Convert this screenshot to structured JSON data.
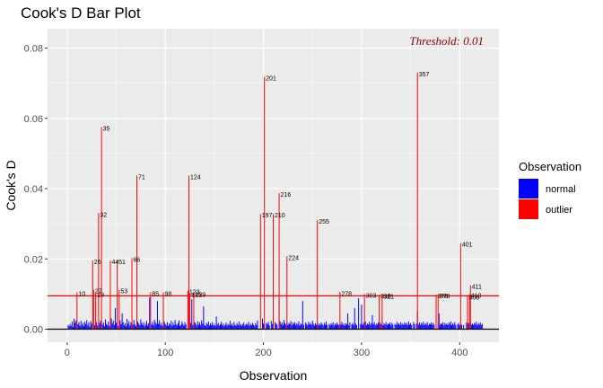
{
  "chart_data": {
    "type": "bar",
    "title": "Cook's D Bar Plot",
    "xlabel": "Observation",
    "ylabel": "Cook's D",
    "xlim": [
      -20,
      440
    ],
    "ylim": [
      -0.0037,
      0.0855
    ],
    "x_ticks": [
      0,
      100,
      200,
      300,
      400
    ],
    "y_ticks": [
      0.0,
      0.02,
      0.04,
      0.06,
      0.08
    ],
    "y_tick_labels": [
      "0.00",
      "0.02",
      "0.04",
      "0.06",
      "0.08"
    ],
    "grid": true,
    "threshold": 0.0095,
    "threshold_label": "Threshold: 0.01",
    "legend": {
      "title": "Observation",
      "position": "right",
      "items": [
        {
          "name": "normal",
          "color": "#0000ff"
        },
        {
          "name": "outlier",
          "color": "#ff0000"
        }
      ]
    },
    "colors": {
      "normal": "#0000ff",
      "outlier": "#ff0000",
      "threshold": "#ff0000",
      "panel": "#ebebeb",
      "grid": "#ffffff"
    },
    "outliers": [
      {
        "x": 10,
        "y": 0.0105
      },
      {
        "x": 26,
        "y": 0.0195
      },
      {
        "x": 27,
        "y": 0.0112
      },
      {
        "x": 29,
        "y": 0.0102
      },
      {
        "x": 32,
        "y": 0.033
      },
      {
        "x": 35,
        "y": 0.0575
      },
      {
        "x": 44,
        "y": 0.0195
      },
      {
        "x": 51,
        "y": 0.0195
      },
      {
        "x": 53,
        "y": 0.0112
      },
      {
        "x": 66,
        "y": 0.0202
      },
      {
        "x": 71,
        "y": 0.0437
      },
      {
        "x": 85,
        "y": 0.0105
      },
      {
        "x": 98,
        "y": 0.0105
      },
      {
        "x": 123,
        "y": 0.011
      },
      {
        "x": 124,
        "y": 0.0437
      },
      {
        "x": 125,
        "y": 0.0102
      },
      {
        "x": 129,
        "y": 0.0102
      },
      {
        "x": 197,
        "y": 0.0328
      },
      {
        "x": 201,
        "y": 0.0718
      },
      {
        "x": 210,
        "y": 0.0328
      },
      {
        "x": 216,
        "y": 0.0387
      },
      {
        "x": 224,
        "y": 0.0207
      },
      {
        "x": 255,
        "y": 0.031
      },
      {
        "x": 278,
        "y": 0.0105
      },
      {
        "x": 303,
        "y": 0.01
      },
      {
        "x": 318,
        "y": 0.0098
      },
      {
        "x": 321,
        "y": 0.0097
      },
      {
        "x": 357,
        "y": 0.073
      },
      {
        "x": 376,
        "y": 0.0098
      },
      {
        "x": 378,
        "y": 0.0098
      },
      {
        "x": 401,
        "y": 0.0245
      },
      {
        "x": 408,
        "y": 0.0095
      },
      {
        "x": 410,
        "y": 0.01
      },
      {
        "x": 411,
        "y": 0.0125
      }
    ],
    "normal_values_by_observation": {
      "start": 1,
      "values": [
        0.0012,
        0.0008,
        0.0015,
        0.001,
        0.0022,
        0.0006,
        0.003,
        0.0018,
        0.0025,
        0.0,
        0.0014,
        0.002,
        0.0009,
        0.0024,
        0.0012,
        0.0018,
        0.0008,
        0.0021,
        0.0015,
        0.0026,
        0.0011,
        0.0019,
        0.0007,
        0.0023,
        0.0016,
        0.0,
        0.0,
        0.0012,
        0.0,
        0.002,
        0.001,
        0.0,
        0.0017,
        0.0024,
        0.0,
        0.0013,
        0.0019,
        0.0008,
        0.0028,
        0.0015,
        0.0011,
        0.0022,
        0.0009,
        0.0,
        0.0031,
        0.0016,
        0.0024,
        0.0012,
        0.006,
        0.0018,
        0.0,
        0.001,
        0.0,
        0.0025,
        0.0014,
        0.0045,
        0.002,
        0.0011,
        0.0017,
        0.0008,
        0.0029,
        0.0015,
        0.0023,
        0.001,
        0.0019,
        0.0,
        0.0013,
        0.0026,
        0.0014,
        0.0009,
        0.0,
        0.0022,
        0.0016,
        0.0011,
        0.0028,
        0.0018,
        0.0012,
        0.002,
        0.0008,
        0.0015,
        0.0024,
        0.001,
        0.0017,
        0.009,
        0.0,
        0.0013,
        0.0021,
        0.0011,
        0.0027,
        0.0019,
        0.0014,
        0.008,
        0.0016,
        0.0025,
        0.0012,
        0.0018,
        0.001,
        0.0,
        0.0022,
        0.0015,
        0.0011,
        0.002,
        0.0009,
        0.0016,
        0.0013,
        0.0024,
        0.001,
        0.0019,
        0.0012,
        0.0026,
        0.0014,
        0.0011,
        0.0017,
        0.0025,
        0.0009,
        0.0013,
        0.0022,
        0.0015,
        0.001,
        0.002,
        0.0014,
        0.0,
        0.0,
        0.0,
        0.0,
        0.0018,
        0.0085,
        0.0012,
        0.0,
        0.002,
        0.0016,
        0.001,
        0.0023,
        0.0013,
        0.0019,
        0.0011,
        0.0025,
        0.0016,
        0.0065,
        0.0012,
        0.0009,
        0.0018,
        0.0014,
        0.0022,
        0.001,
        0.0017,
        0.0012,
        0.002,
        0.0011,
        0.0015,
        0.0009,
        0.0036,
        0.0013,
        0.0018,
        0.001,
        0.0014,
        0.0021,
        0.0011,
        0.0016,
        0.0009,
        0.0013,
        0.0019,
        0.001,
        0.0015,
        0.0012,
        0.0024,
        0.0011,
        0.0016,
        0.0009,
        0.002,
        0.0013,
        0.001,
        0.0017,
        0.0012,
        0.0022,
        0.0011,
        0.0015,
        0.0009,
        0.0014,
        0.0019,
        0.001,
        0.0013,
        0.0016,
        0.0012,
        0.0021,
        0.001,
        0.0015,
        0.0011,
        0.0018,
        0.0013,
        0.0009,
        0.0017,
        0.0012,
        0.0025,
        0.0,
        0.0,
        0.0,
        0.0,
        0.003,
        0.0016,
        0.0012,
        0.0,
        0.0018,
        0.0014,
        0.0021,
        0.0011,
        0.0,
        0.0024,
        0.0015,
        0.0012,
        0.0,
        0.002,
        0.0016,
        0.0013,
        0.0,
        0.0085,
        0.0022,
        0.0014,
        0.0019,
        0.0011,
        0.0026,
        0.0017,
        0.0013,
        0.0021,
        0.0012,
        0.0018,
        0.0015,
        0.0023,
        0.0011,
        0.0019,
        0.0014,
        0.002,
        0.0012,
        0.0017,
        0.0013,
        0.0022,
        0.001,
        0.0016,
        0.0014,
        0.008,
        0.0012,
        0.0,
        0.0019,
        0.0015,
        0.0011,
        0.0021,
        0.0014,
        0.0018,
        0.0012,
        0.0024,
        0.0015,
        0.001,
        0.0017,
        0.0013,
        0.002,
        0.0011,
        0.0016,
        0.0012,
        0.0019,
        0.0014,
        0.001,
        0.0018,
        0.0013,
        0.0022,
        0.0012,
        0.0,
        0.0015,
        0.0011,
        0.0017,
        0.0013,
        0.002,
        0.001,
        0.0016,
        0.0012,
        0.0019,
        0.0014,
        0.0011,
        0.0018,
        0.0013,
        0.0021,
        0.0012,
        0.0016,
        0.001,
        0.0017,
        0.0013,
        0.0045,
        0.0011,
        0.0019,
        0.0,
        0.0014,
        0.0018,
        0.0012,
        0.006,
        0.0016,
        0.0011,
        0.0,
        0.0088,
        0.0,
        0.0015,
        0.007,
        0.0012,
        0.0018,
        0.0014,
        0.0022,
        0.0011,
        0.0016,
        0.0013,
        0.0021,
        0.0012,
        0.0017,
        0.004,
        0.0014,
        0.002,
        0.0011,
        0.0016,
        0.0013,
        0.0019,
        0.0012,
        0.0018,
        0.0014,
        0.0022,
        0.0011,
        0.0017,
        0.0013,
        0.002,
        0.0012,
        0.0016,
        0.0014,
        0.0019,
        0.0011,
        0.0018,
        0.0013,
        0.0,
        0.0015,
        0.0012,
        0.0021,
        0.0014,
        0.0017,
        0.0011,
        0.002,
        0.0013,
        0.0016,
        0.0012,
        0.0019,
        0.0014,
        0.0018,
        0.0011,
        0.0022,
        0.0013,
        0.0017,
        0.0012,
        0.0,
        0.002,
        0.0014,
        0.0,
        0.0016,
        0.005,
        0.0013,
        0.0019,
        0.0011,
        0.0018,
        0.0014,
        0.0021,
        0.0012,
        0.0017,
        0.0013,
        0.002,
        0.0011,
        0.0016,
        0.0014,
        0.0019,
        0.0012,
        0.0018,
        0.0013,
        0.0,
        0.0011,
        0.0,
        0.0015,
        0.0045,
        0.0012,
        0.0017,
        0.0014,
        0.002,
        0.0011,
        0.0018,
        0.0013,
        0.0016,
        0.0012,
        0.0019,
        0.0014,
        0.0022,
        0.0011,
        0.0017,
        0.0013,
        0.002,
        0.0012,
        0.0,
        0.0014,
        0.0018,
        0.0011,
        0.0016,
        0.0013,
        0.0,
        0.0012,
        0.0,
        0.0,
        0.0019,
        0.0014,
        0.0017,
        0.0011,
        0.002,
        0.0013,
        0.0016,
        0.0012,
        0.0018,
        0.0014,
        0.0021,
        0.0011,
        0.0017,
        0.0013,
        0.0019,
        0.0012,
        0.0016
      ]
    }
  }
}
